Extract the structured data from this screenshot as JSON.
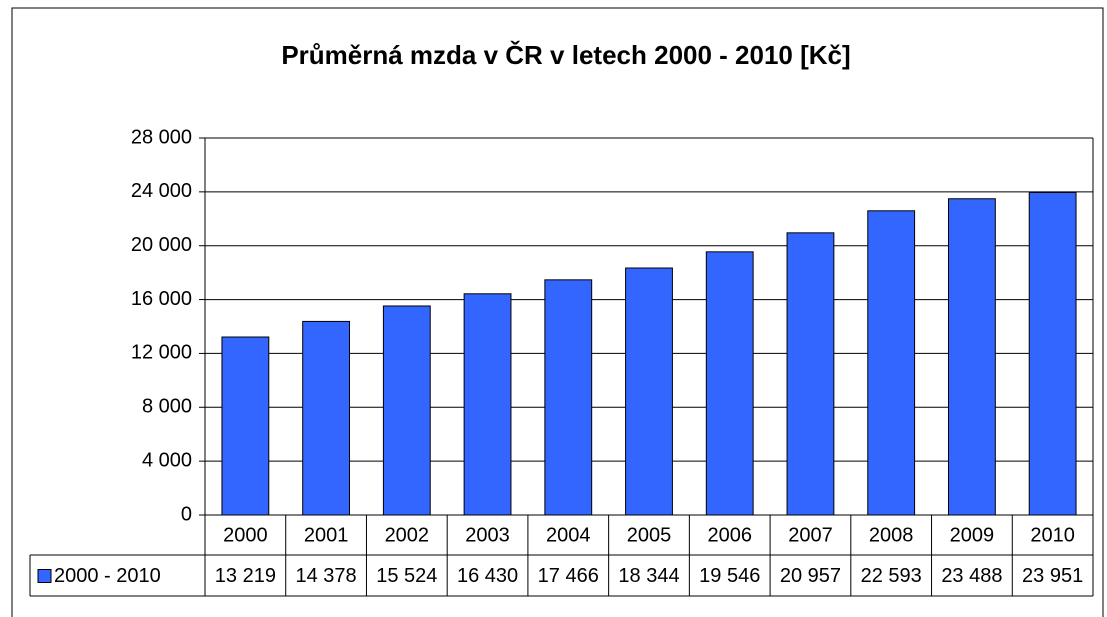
{
  "chart_data": {
    "type": "bar",
    "title": "Průměrná mzda v ČR v letech 2000 - 2010 [Kč]",
    "categories": [
      "2000",
      "2001",
      "2002",
      "2003",
      "2004",
      "2005",
      "2006",
      "2007",
      "2008",
      "2009",
      "2010"
    ],
    "series": [
      {
        "name": "2000 - 2010",
        "color": "#3366ff",
        "values": [
          13219,
          14378,
          15524,
          16430,
          17466,
          18344,
          19546,
          20957,
          22593,
          23488,
          23951
        ],
        "value_labels": [
          "13 219",
          "14 378",
          "15 524",
          "16 430",
          "17 466",
          "18 344",
          "19 546",
          "20 957",
          "22 593",
          "23 488",
          "23 951"
        ]
      }
    ],
    "ylim": [
      0,
      28000
    ],
    "yticks": [
      {
        "value": 0,
        "label": "0"
      },
      {
        "value": 4000,
        "label": "4 000"
      },
      {
        "value": 8000,
        "label": "8 000"
      },
      {
        "value": 12000,
        "label": "12 000"
      },
      {
        "value": 16000,
        "label": "16 000"
      },
      {
        "value": 20000,
        "label": "20 000"
      },
      {
        "value": 24000,
        "label": "24 000"
      },
      {
        "value": 28000,
        "label": "28 000"
      }
    ],
    "grid": true
  }
}
